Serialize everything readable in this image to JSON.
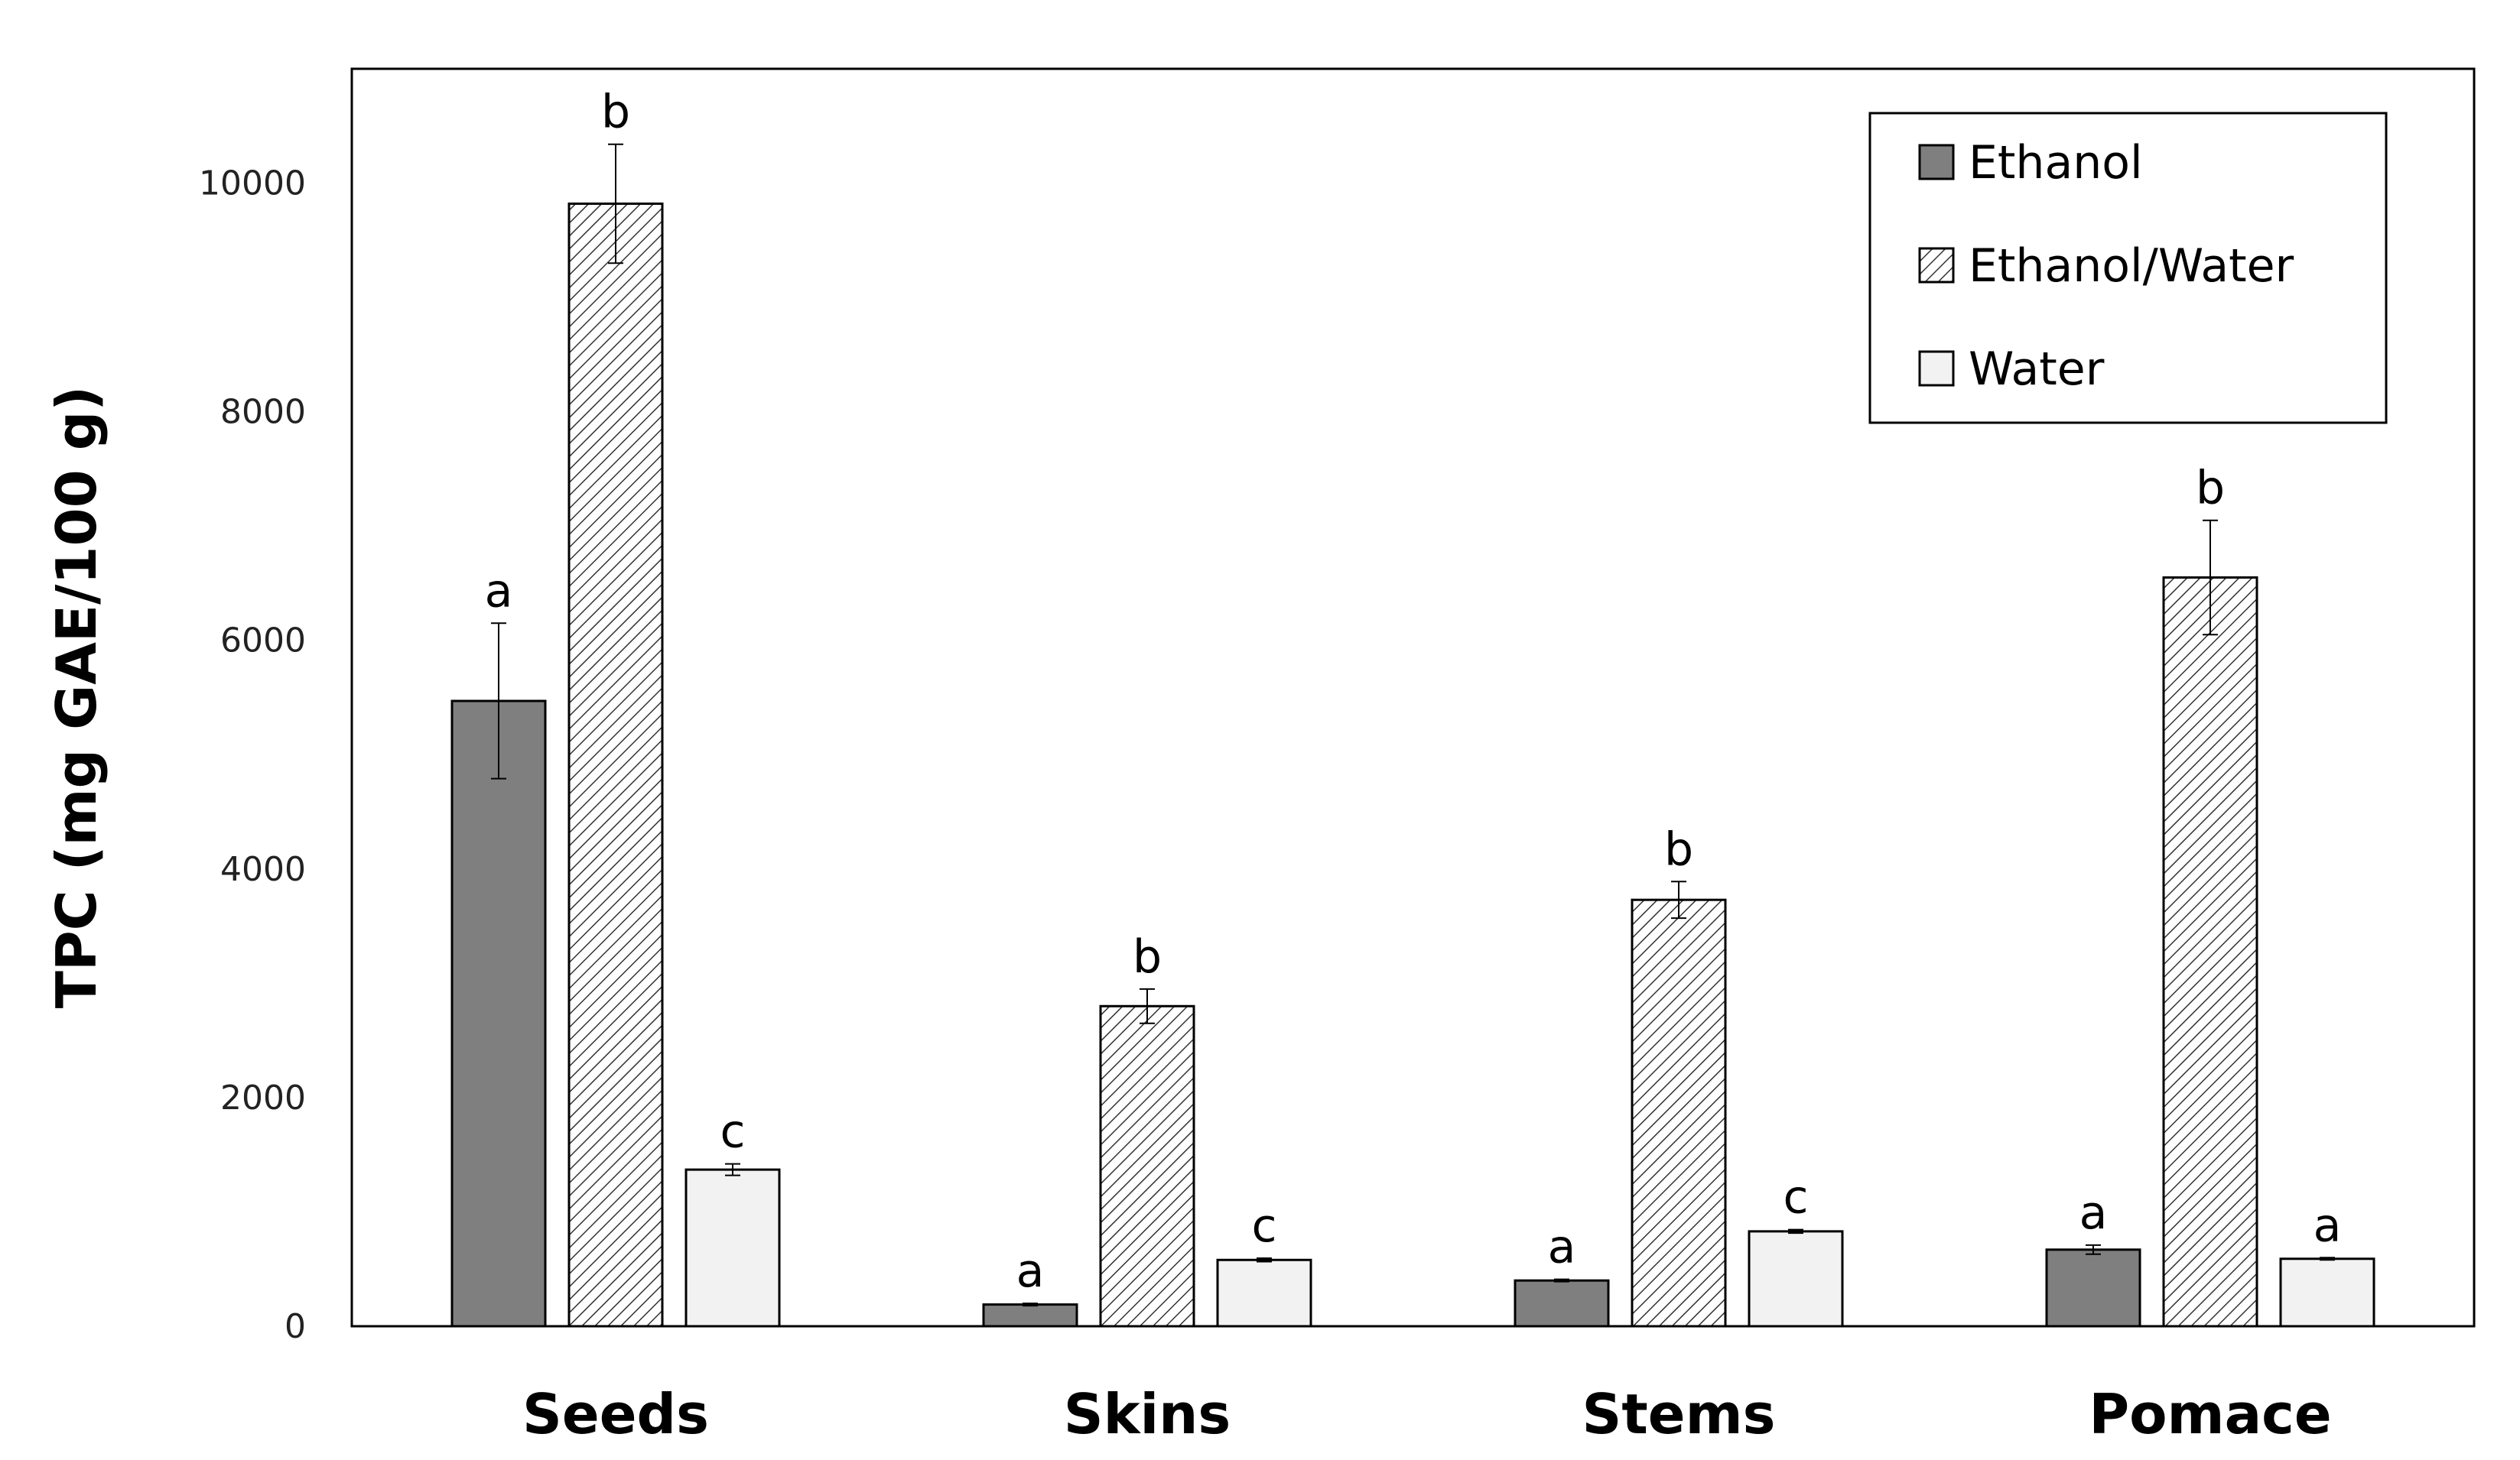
{
  "chart_data": {
    "type": "bar",
    "title": "",
    "xlabel": "",
    "ylabel": "TPC (mg GAE/100 g)",
    "categories": [
      "Seeds",
      "Skins",
      "Stems",
      "Pomace"
    ],
    "ylim": [
      0,
      11000
    ],
    "yticks": [
      0,
      2000,
      4000,
      6000,
      8000,
      10000
    ],
    "grid": false,
    "legend_position": "top-right",
    "series": [
      {
        "name": "Ethanol",
        "fill": "#7f7f7f",
        "pattern": "solid",
        "values": [
          5470,
          190,
          400,
          670
        ],
        "errors": [
          680,
          10,
          10,
          40
        ],
        "letters": [
          "a",
          "a",
          "a",
          "a"
        ]
      },
      {
        "name": "Ethanol/Water",
        "fill": "#ffffff",
        "pattern": "hatch",
        "values": [
          9820,
          2800,
          3730,
          6550
        ],
        "errors": [
          520,
          150,
          160,
          500
        ],
        "letters": [
          "b",
          "b",
          "b",
          "b"
        ]
      },
      {
        "name": "Water",
        "fill": "#f2f2f2",
        "pattern": "solid",
        "values": [
          1370,
          580,
          830,
          590
        ],
        "errors": [
          50,
          15,
          15,
          10
        ],
        "letters": [
          "c",
          "c",
          "c",
          "a"
        ]
      }
    ]
  }
}
